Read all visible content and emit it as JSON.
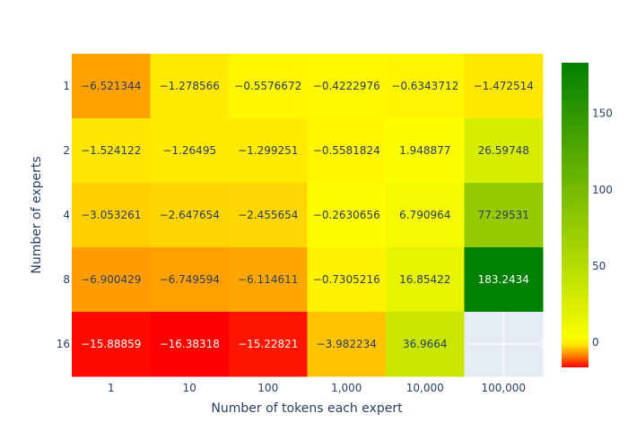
{
  "chart_data": {
    "type": "heatmap",
    "title": "",
    "xlabel": "Number of tokens each expert",
    "ylabel": "Number of experts",
    "x_categories": [
      "1",
      "10",
      "100",
      "1,000",
      "10,000",
      "100,000"
    ],
    "y_categories": [
      "1",
      "2",
      "4",
      "8",
      "16"
    ],
    "values": [
      [
        -6.521344,
        -1.278566,
        -0.5576672,
        -0.4222976,
        -0.6343712,
        -1.472514
      ],
      [
        -1.524122,
        -1.26495,
        -1.299251,
        -0.5581824,
        1.948877,
        26.59748
      ],
      [
        -3.053261,
        -2.647654,
        -2.455654,
        -0.2630656,
        6.790964,
        77.29531
      ],
      [
        -6.900429,
        -6.749594,
        -6.114611,
        -0.7305216,
        16.85422,
        183.2434
      ],
      [
        -15.88859,
        -16.38318,
        -15.22821,
        -3.982234,
        36.9664,
        null
      ]
    ],
    "labels": [
      [
        "−6.521344",
        "−1.278566",
        "−0.5576672",
        "−0.4222976",
        "−0.6343712",
        "−1.472514"
      ],
      [
        "−1.524122",
        "−1.26495",
        "−1.299251",
        "−0.5581824",
        "1.948877",
        "26.59748"
      ],
      [
        "−3.053261",
        "−2.647654",
        "−2.455654",
        "−0.2630656",
        "6.790964",
        "77.29531"
      ],
      [
        "−6.900429",
        "−6.749594",
        "−6.114611",
        "−0.7305216",
        "16.85422",
        "183.2434"
      ],
      [
        "−15.88859",
        "−16.38318",
        "−15.22821",
        "−3.982234",
        "36.9664",
        ""
      ]
    ],
    "colorbar": {
      "ticks": [
        0,
        50,
        100,
        150
      ],
      "tick_labels": [
        "0",
        "50",
        "100",
        "150"
      ],
      "range": [
        -16.38318,
        183.2434
      ]
    },
    "colors": {
      "scale": [
        "#ff0000",
        "#ff8c00",
        "#ffd700",
        "#ffff00",
        "#c8e600",
        "#80c000",
        "#008000"
      ],
      "missing": "#e5ecf6",
      "axis_text": "#2a3f5f",
      "cell_text_dark": "#2a3f5f",
      "cell_text_light": "#ffffff"
    }
  }
}
